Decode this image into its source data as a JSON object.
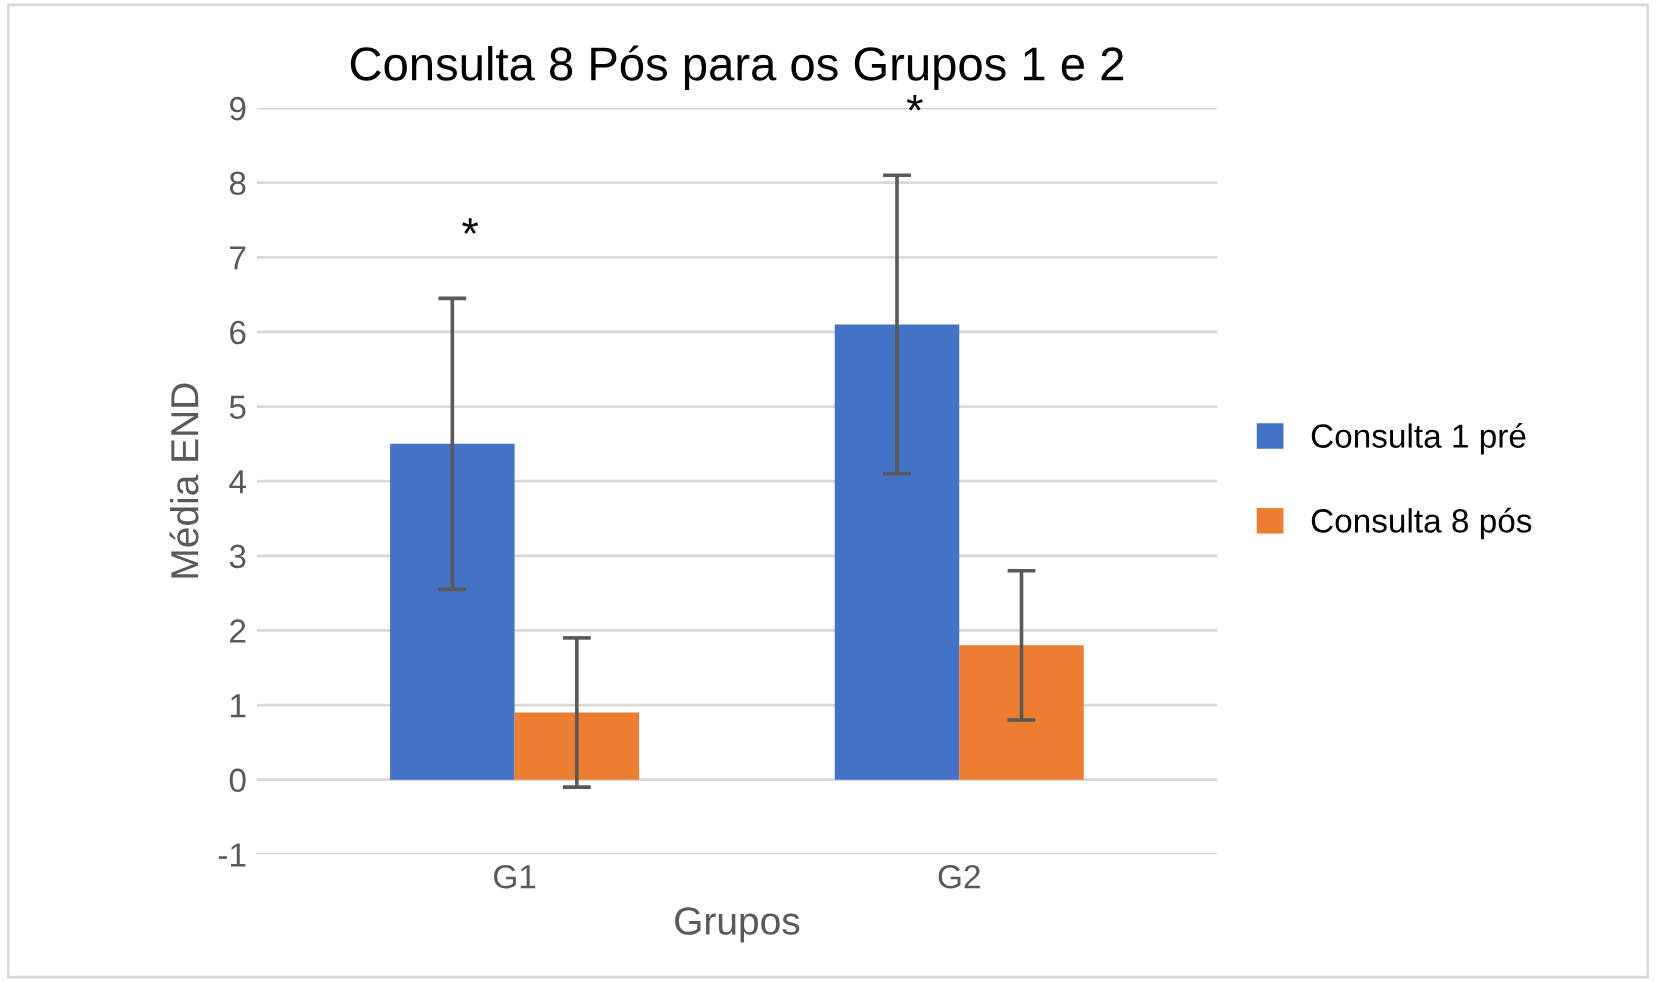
{
  "chart_data": {
    "type": "bar",
    "title": "Consulta 8 Pós para os Grupos 1 e 2",
    "xlabel": "Grupos",
    "ylabel": "Média END",
    "categories": [
      "G1",
      "G2"
    ],
    "series": [
      {
        "name": "Consulta 1 pré",
        "color": "#4472c4",
        "values": [
          4.5,
          6.1
        ],
        "errors": [
          1.95,
          2.0
        ]
      },
      {
        "name": "Consulta 8 pós",
        "color": "#ed7d31",
        "values": [
          0.9,
          1.8
        ],
        "errors": [
          1.0,
          1.0
        ]
      }
    ],
    "ylim": [
      -1,
      9
    ],
    "yticks": [
      -1,
      0,
      1,
      2,
      3,
      4,
      5,
      6,
      7,
      8,
      9
    ],
    "grid": "y",
    "legend": "right",
    "annotations": [
      "*",
      "*"
    ]
  }
}
